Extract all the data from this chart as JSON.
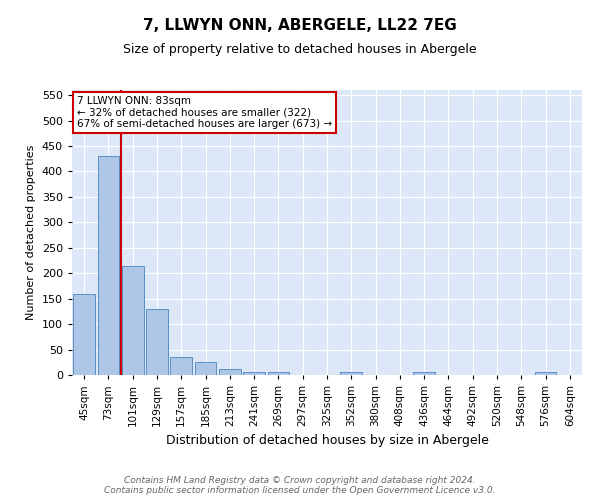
{
  "title_line1": "7, LLWYN ONN, ABERGELE, LL22 7EG",
  "title_line2": "Size of property relative to detached houses in Abergele",
  "xlabel": "Distribution of detached houses by size in Abergele",
  "ylabel": "Number of detached properties",
  "footnote": "Contains HM Land Registry data © Crown copyright and database right 2024.\nContains public sector information licensed under the Open Government Licence v3.0.",
  "categories": [
    "45sqm",
    "73sqm",
    "101sqm",
    "129sqm",
    "157sqm",
    "185sqm",
    "213sqm",
    "241sqm",
    "269sqm",
    "297sqm",
    "325sqm",
    "352sqm",
    "380sqm",
    "408sqm",
    "436sqm",
    "464sqm",
    "492sqm",
    "520sqm",
    "548sqm",
    "576sqm",
    "604sqm"
  ],
  "values": [
    160,
    430,
    215,
    129,
    35,
    25,
    12,
    6,
    5,
    0,
    0,
    5,
    0,
    0,
    5,
    0,
    0,
    0,
    0,
    5,
    0
  ],
  "bar_color": "#aec6e8",
  "bar_edge_color": "#5a8fc2",
  "vline_x": 1.5,
  "vline_color": "#cc0000",
  "annotation_text": "7 LLWYN ONN: 83sqm\n← 32% of detached houses are smaller (322)\n67% of semi-detached houses are larger (673) →",
  "annotation_box_color": "white",
  "annotation_box_edge_color": "#cc0000",
  "ylim": [
    0,
    560
  ],
  "yticks": [
    0,
    50,
    100,
    150,
    200,
    250,
    300,
    350,
    400,
    450,
    500,
    550
  ],
  "background_color": "#dce8f8",
  "title1_fontsize": 11,
  "title2_fontsize": 9,
  "xlabel_fontsize": 9,
  "ylabel_fontsize": 8,
  "footnote_fontsize": 6.5,
  "tick_fontsize": 8,
  "xtick_fontsize": 7.5
}
